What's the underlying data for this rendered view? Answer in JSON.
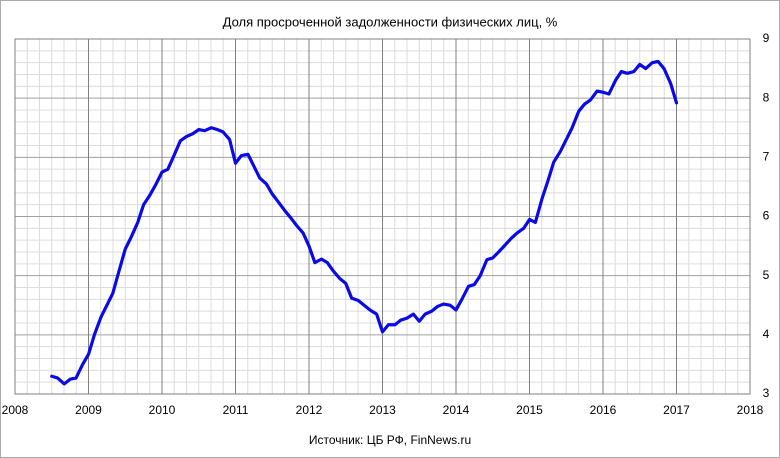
{
  "chart_data": {
    "type": "line",
    "title": "Доля просроченной задолженности физических лиц, %",
    "x_label": "Источник: ЦБ РФ, FinNews.ru",
    "x": [
      2008.5,
      2008.58,
      2008.67,
      2008.75,
      2008.83,
      2008.92,
      2009.0,
      2009.08,
      2009.17,
      2009.25,
      2009.33,
      2009.42,
      2009.5,
      2009.58,
      2009.67,
      2009.75,
      2009.83,
      2009.92,
      2010.0,
      2010.08,
      2010.17,
      2010.25,
      2010.33,
      2010.42,
      2010.5,
      2010.58,
      2010.67,
      2010.75,
      2010.83,
      2010.92,
      2011.0,
      2011.08,
      2011.17,
      2011.25,
      2011.33,
      2011.42,
      2011.5,
      2011.58,
      2011.67,
      2011.75,
      2011.83,
      2011.92,
      2012.0,
      2012.08,
      2012.17,
      2012.25,
      2012.33,
      2012.42,
      2012.5,
      2012.58,
      2012.67,
      2012.75,
      2012.83,
      2012.92,
      2013.0,
      2013.08,
      2013.17,
      2013.25,
      2013.33,
      2013.42,
      2013.5,
      2013.58,
      2013.67,
      2013.75,
      2013.83,
      2013.92,
      2014.0,
      2014.08,
      2014.17,
      2014.25,
      2014.33,
      2014.42,
      2014.5,
      2014.58,
      2014.67,
      2014.75,
      2014.83,
      2014.92,
      2015.0,
      2015.08,
      2015.17,
      2015.25,
      2015.33,
      2015.42,
      2015.5,
      2015.58,
      2015.67,
      2015.75,
      2015.83,
      2015.92,
      2016.0,
      2016.08,
      2016.17,
      2016.25,
      2016.33,
      2016.42,
      2016.5,
      2016.58,
      2016.67,
      2016.75,
      2016.83,
      2016.92,
      2017.0
    ],
    "series": [
      {
        "name": "Доля просроченной задолженности",
        "color": "#0a0ae6",
        "values": [
          3.3,
          3.27,
          3.17,
          3.25,
          3.27,
          3.5,
          3.67,
          4.0,
          4.3,
          4.5,
          4.7,
          5.1,
          5.45,
          5.65,
          5.9,
          6.2,
          6.35,
          6.55,
          6.75,
          6.8,
          7.05,
          7.28,
          7.35,
          7.4,
          7.47,
          7.45,
          7.5,
          7.47,
          7.43,
          7.3,
          6.9,
          7.03,
          7.05,
          6.85,
          6.65,
          6.55,
          6.38,
          6.25,
          6.1,
          5.98,
          5.85,
          5.72,
          5.5,
          5.22,
          5.28,
          5.22,
          5.08,
          4.95,
          4.87,
          4.62,
          4.58,
          4.5,
          4.42,
          4.35,
          4.05,
          4.17,
          4.17,
          4.25,
          4.28,
          4.35,
          4.23,
          4.35,
          4.4,
          4.48,
          4.52,
          4.5,
          4.42,
          4.6,
          4.82,
          4.85,
          5.0,
          5.27,
          5.3,
          5.4,
          5.52,
          5.63,
          5.72,
          5.8,
          5.95,
          5.9,
          6.3,
          6.6,
          6.92,
          7.1,
          7.3,
          7.5,
          7.78,
          7.9,
          7.97,
          8.12,
          8.1,
          8.07,
          8.3,
          8.45,
          8.42,
          8.45,
          8.57,
          8.5,
          8.6,
          8.62,
          8.5,
          8.25,
          7.92
        ]
      }
    ],
    "xlim": [
      2008,
      2018
    ],
    "xticks": [
      2008,
      2009,
      2010,
      2011,
      2012,
      2013,
      2014,
      2015,
      2016,
      2017,
      2018
    ],
    "ylim": [
      3,
      9
    ],
    "yticks": [
      3,
      4,
      5,
      6,
      7,
      8,
      9
    ],
    "grid": true
  }
}
